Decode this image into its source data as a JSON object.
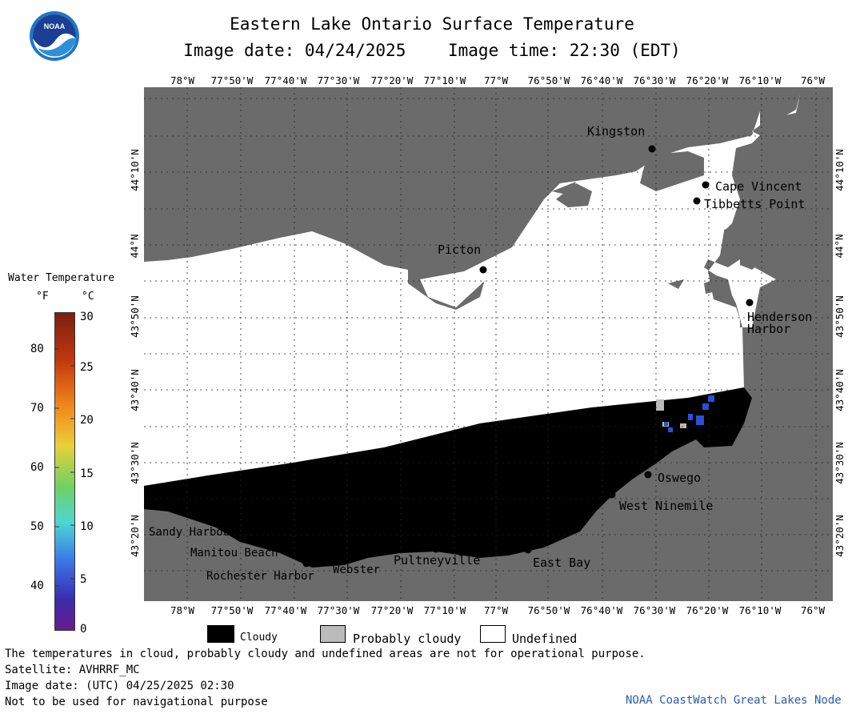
{
  "header": {
    "title": "Eastern Lake Ontario Surface Temperature",
    "image_date": "Image date: 04/24/2025",
    "image_time": "Image time: 22:30 (EDT)"
  },
  "longitude_labels": [
    "78°W",
    "77°50'W",
    "77°40'W",
    "77°30'W",
    "77°20'W",
    "77°10'W",
    "77°W",
    "76°50'W",
    "76°40'W",
    "76°30'W",
    "76°20'W",
    "76°10'W",
    "76°W"
  ],
  "latitude_labels": [
    "44°10'N",
    "44°N",
    "43°50'N",
    "43°40'N",
    "43°30'N",
    "43°20'N"
  ],
  "places": {
    "kingston": "Kingston",
    "cape_vincent": "Cape Vincent",
    "tibbetts_point": "Tibbetts Point",
    "picton": "Picton",
    "henderson_harbor_1": "Henderson",
    "henderson_harbor_2": "Harbor",
    "oswego": "Oswego",
    "west_ninemile": "West Ninemile",
    "sandy_harbour": "Sandy Harbour",
    "manitou_beach": "Manitou Beach",
    "rochester_harbor": "Rochester Harbor",
    "webster": "Webster",
    "pultneyville": "Pultneyville",
    "east_bay": "East Bay"
  },
  "legend": {
    "title": "Water Temperature",
    "unit_f": "°F",
    "unit_c": "°C",
    "f_ticks": [
      "80",
      "70",
      "60",
      "50",
      "40"
    ],
    "c_ticks": [
      "30",
      "25",
      "20",
      "15",
      "10",
      "5",
      "0"
    ],
    "colors": [
      "#7a1f0f",
      "#d9460f",
      "#f4a422",
      "#d9e13c",
      "#6ed164",
      "#4dd7d2",
      "#3a78e8",
      "#3a2db0",
      "#6a1b8a"
    ]
  },
  "key": {
    "cloudy": "Cloudy",
    "probably_cloudy": "Probably cloudy",
    "undefined": "Undefined",
    "colors": {
      "cloudy": "#000000",
      "probably_cloudy": "#bbbbbb",
      "undefined": "#ffffff",
      "land": "#6b6b6b"
    }
  },
  "footer": {
    "line1": "The temperatures in cloud, probably cloudy and undefined areas are not for operational purpose.",
    "line2": "Satellite: AVHRRF_MC",
    "line3": "Image date: (UTC) 04/25/2025  02:30",
    "line4": "Not to be used for navigational purpose",
    "credit": "NOAA CoastWatch Great Lakes Node"
  },
  "logo": {
    "text": "NOAA"
  }
}
